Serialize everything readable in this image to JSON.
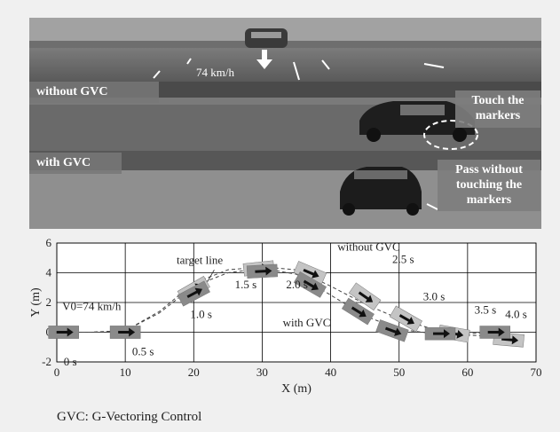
{
  "photo": {
    "speed_label": "74 km/h",
    "without_label": "without GVC",
    "with_label": "with GVC",
    "touch_callout": "Touch the markers",
    "pass_callout": "Pass without touching the markers"
  },
  "chart_data": {
    "type": "line",
    "title": "",
    "xlabel": "X (m)",
    "ylabel": "Y (m)",
    "xlim": [
      0,
      70
    ],
    "ylim": [
      -2,
      6
    ],
    "x_ticks": [
      0,
      10,
      20,
      30,
      40,
      50,
      60,
      70
    ],
    "y_ticks": [
      -2,
      0,
      2,
      4,
      6
    ],
    "annotations": {
      "target_line": "target line",
      "without": "without GVC",
      "with": "with GVC",
      "initial_speed": "V0=74 km/h"
    },
    "series": [
      {
        "name": "without GVC",
        "x": [
          0,
          5,
          10,
          15,
          20,
          25,
          30,
          35,
          40,
          45,
          50,
          55,
          60,
          65,
          68
        ],
        "y": [
          0,
          0,
          0.1,
          1.4,
          3.3,
          4.2,
          4.4,
          4.2,
          3.1,
          1.9,
          0.9,
          0.2,
          -0.2,
          -0.3,
          -0.3
        ]
      },
      {
        "name": "with GVC",
        "x": [
          0,
          5,
          10,
          15,
          20,
          25,
          30,
          35,
          40,
          45,
          50,
          55,
          60,
          65,
          68
        ],
        "y": [
          0,
          0,
          0.1,
          1.3,
          3.1,
          4.0,
          4.3,
          3.9,
          2.5,
          1.1,
          0.2,
          -0.1,
          -0.1,
          0,
          0
        ]
      }
    ],
    "time_marks": [
      {
        "label": "0 s",
        "x": 1,
        "y": -2
      },
      {
        "label": "0.5 s",
        "x": 11,
        "y": -1.3
      },
      {
        "label": "1.0 s",
        "x": 19.5,
        "y": 1.2
      },
      {
        "label": "1.5 s",
        "x": 26,
        "y": 3.2
      },
      {
        "label": "2.0 s",
        "x": 33.5,
        "y": 3.2
      },
      {
        "label": "2.5 s",
        "x": 49,
        "y": 4.9
      },
      {
        "label": "3.0 s",
        "x": 53.5,
        "y": 2.4
      },
      {
        "label": "3.5 s",
        "x": 61,
        "y": 1.5
      },
      {
        "label": "4.0 s",
        "x": 65.5,
        "y": 1.2
      }
    ],
    "vehicle_markers": [
      {
        "series": "without GVC",
        "x": 1,
        "y": 0,
        "angle": 0
      },
      {
        "series": "without GVC",
        "x": 10,
        "y": 0,
        "angle": 0
      },
      {
        "series": "without GVC",
        "x": 20,
        "y": 2.9,
        "angle": 30
      },
      {
        "series": "without GVC",
        "x": 29.5,
        "y": 4.3,
        "angle": 6
      },
      {
        "series": "without GVC",
        "x": 37,
        "y": 4.0,
        "angle": -23
      },
      {
        "series": "without GVC",
        "x": 45,
        "y": 2.4,
        "angle": -35
      },
      {
        "series": "without GVC",
        "x": 51,
        "y": 0.9,
        "angle": -30
      },
      {
        "series": "without GVC",
        "x": 58,
        "y": -0.1,
        "angle": -10
      },
      {
        "series": "without GVC",
        "x": 66,
        "y": -0.5,
        "angle": -5
      },
      {
        "series": "with GVC",
        "x": 1,
        "y": 0,
        "angle": 0
      },
      {
        "series": "with GVC",
        "x": 10,
        "y": 0,
        "angle": 0
      },
      {
        "series": "with GVC",
        "x": 20,
        "y": 2.6,
        "angle": 28
      },
      {
        "series": "with GVC",
        "x": 30,
        "y": 4.1,
        "angle": 3
      },
      {
        "series": "with GVC",
        "x": 37,
        "y": 3.2,
        "angle": -30
      },
      {
        "series": "with GVC",
        "x": 44,
        "y": 1.4,
        "angle": -32
      },
      {
        "series": "with GVC",
        "x": 49,
        "y": 0.1,
        "angle": -20
      },
      {
        "series": "with GVC",
        "x": 56,
        "y": -0.1,
        "angle": 0
      },
      {
        "series": "with GVC",
        "x": 64,
        "y": 0,
        "angle": 0
      }
    ],
    "grid": true,
    "legend": "none"
  },
  "footer": "GVC: G-Vectoring Control"
}
